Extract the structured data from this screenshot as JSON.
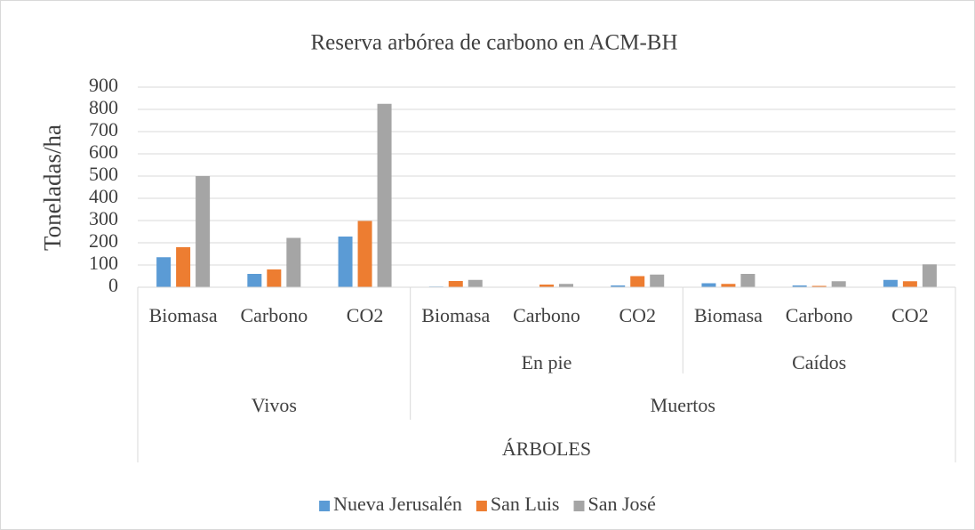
{
  "chart_data": {
    "type": "bar",
    "title": "Reserva arbórea de carbono en ACM-BH",
    "ylabel": "Toneladas/ha",
    "super_category": "ÁRBOLES",
    "groups": [
      {
        "name": "Vivos",
        "subgroups": [
          {
            "name": null,
            "categories": [
              "Biomasa",
              "Carbono",
              "CO2"
            ]
          }
        ]
      },
      {
        "name": "Muertos",
        "subgroups": [
          {
            "name": "En pie",
            "categories": [
              "Biomasa",
              "Carbono",
              "CO2"
            ]
          },
          {
            "name": "Caídos",
            "categories": [
              "Biomasa",
              "Carbono",
              "CO2"
            ]
          }
        ]
      }
    ],
    "series": [
      {
        "name": "Nueva Jerusalén",
        "color": "#5b9bd5",
        "values": [
          135,
          60,
          228,
          3,
          1,
          8,
          18,
          8,
          33
        ]
      },
      {
        "name": "San Luis",
        "color": "#ed7d31",
        "values": [
          180,
          80,
          298,
          28,
          12,
          50,
          15,
          6,
          27
        ]
      },
      {
        "name": "San José",
        "color": "#a5a5a5",
        "values": [
          500,
          222,
          825,
          33,
          15,
          57,
          60,
          27,
          103
        ]
      }
    ],
    "ylim": [
      0,
      900
    ],
    "yticks": [
      0,
      100,
      200,
      300,
      400,
      500,
      600,
      700,
      800,
      900
    ],
    "grid": true,
    "legend": "bottom"
  }
}
